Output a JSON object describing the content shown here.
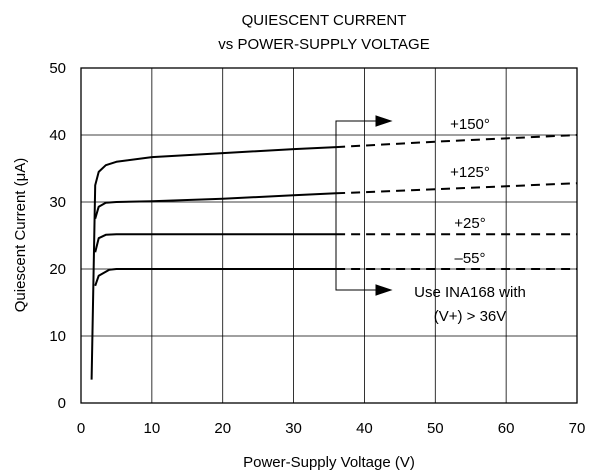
{
  "chart_data": {
    "type": "line",
    "title": [
      "QUIESCENT CURRENT",
      "vs POWER-SUPPLY VOLTAGE"
    ],
    "xlabel": "Power-Supply Voltage (V)",
    "ylabel": "Quiescent Current (μA)",
    "xlim": [
      0,
      70
    ],
    "ylim": [
      0,
      50
    ],
    "xticks": [
      0,
      10,
      20,
      30,
      40,
      50,
      60,
      70
    ],
    "yticks": [
      0,
      10,
      20,
      30,
      40,
      50
    ],
    "grid": true,
    "series": [
      {
        "name": "+150°",
        "solid": [
          [
            1.5,
            3.5
          ],
          [
            2.0,
            32.5
          ],
          [
            2.5,
            34.5
          ],
          [
            3.5,
            35.5
          ],
          [
            5,
            36.0
          ],
          [
            10,
            36.7
          ],
          [
            20,
            37.3
          ],
          [
            30,
            37.9
          ],
          [
            36,
            38.2
          ]
        ],
        "dashed": [
          [
            36,
            38.2
          ],
          [
            50,
            39.0
          ],
          [
            70,
            40.0
          ]
        ]
      },
      {
        "name": "+125°",
        "solid": [
          [
            2.0,
            27.5
          ],
          [
            2.5,
            29.3
          ],
          [
            3.5,
            29.9
          ],
          [
            5,
            30.0
          ],
          [
            10,
            30.1
          ],
          [
            20,
            30.5
          ],
          [
            30,
            31.0
          ],
          [
            36,
            31.3
          ]
        ],
        "dashed": [
          [
            36,
            31.3
          ],
          [
            50,
            31.9
          ],
          [
            70,
            32.8
          ]
        ]
      },
      {
        "name": "+25°",
        "solid": [
          [
            2.0,
            22.5
          ],
          [
            2.5,
            24.6
          ],
          [
            3.5,
            25.1
          ],
          [
            5,
            25.2
          ],
          [
            36,
            25.2
          ]
        ],
        "dashed": [
          [
            36,
            25.2
          ],
          [
            70,
            25.2
          ]
        ]
      },
      {
        "name": "–55°",
        "solid": [
          [
            2.0,
            17.5
          ],
          [
            2.5,
            19.0
          ],
          [
            4,
            19.9
          ],
          [
            5,
            20.0
          ],
          [
            36,
            20.0
          ]
        ],
        "dashed": [
          [
            36,
            20.0
          ],
          [
            70,
            20.0
          ]
        ]
      }
    ],
    "annotation": [
      "Use INA168 with",
      "(V+) > 36V"
    ]
  }
}
